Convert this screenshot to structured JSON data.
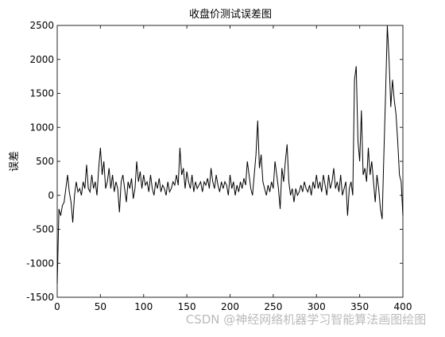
{
  "chart_data": {
    "type": "line",
    "title": "收盘价测试误差图",
    "y_label": "误差",
    "x": [
      0,
      2,
      4,
      6,
      8,
      10,
      12,
      14,
      16,
      18,
      20,
      22,
      24,
      26,
      28,
      30,
      32,
      34,
      36,
      38,
      40,
      42,
      44,
      46,
      48,
      50,
      52,
      54,
      56,
      58,
      60,
      62,
      64,
      66,
      68,
      70,
      72,
      74,
      76,
      78,
      80,
      82,
      84,
      86,
      88,
      90,
      92,
      94,
      96,
      98,
      100,
      102,
      104,
      106,
      108,
      110,
      112,
      114,
      116,
      118,
      120,
      122,
      124,
      126,
      128,
      130,
      132,
      134,
      136,
      138,
      140,
      142,
      144,
      146,
      148,
      150,
      152,
      154,
      156,
      158,
      160,
      162,
      164,
      166,
      168,
      170,
      172,
      174,
      176,
      178,
      180,
      182,
      184,
      186,
      188,
      190,
      192,
      194,
      196,
      198,
      200,
      202,
      204,
      206,
      208,
      210,
      212,
      214,
      216,
      218,
      220,
      222,
      224,
      226,
      228,
      230,
      232,
      234,
      236,
      238,
      240,
      242,
      244,
      246,
      248,
      250,
      252,
      254,
      256,
      258,
      260,
      262,
      264,
      266,
      268,
      270,
      272,
      274,
      276,
      278,
      280,
      282,
      284,
      286,
      288,
      290,
      292,
      294,
      296,
      298,
      300,
      302,
      304,
      306,
      308,
      310,
      312,
      314,
      316,
      318,
      320,
      322,
      324,
      326,
      328,
      330,
      332,
      334,
      336,
      338,
      340,
      342,
      344,
      346,
      348,
      350,
      352,
      354,
      356,
      358,
      360,
      362,
      364,
      366,
      368,
      370,
      372,
      374,
      376,
      378,
      380,
      382,
      384,
      386,
      388,
      390,
      392,
      394,
      396,
      398,
      400
    ],
    "series": [
      {
        "color": "#000000",
        "values": [
          -1300,
          -200,
          -300,
          -150,
          -100,
          100,
          300,
          50,
          -100,
          -400,
          0,
          200,
          50,
          100,
          0,
          200,
          100,
          450,
          100,
          50,
          300,
          100,
          200,
          0,
          400,
          700,
          300,
          500,
          100,
          200,
          400,
          100,
          300,
          50,
          200,
          100,
          -250,
          200,
          300,
          100,
          -100,
          200,
          100,
          250,
          -50,
          100,
          500,
          200,
          350,
          100,
          300,
          150,
          200,
          50,
          300,
          100,
          0,
          200,
          100,
          250,
          50,
          150,
          100,
          0,
          200,
          50,
          100,
          200,
          150,
          300,
          150,
          700,
          300,
          400,
          100,
          350,
          200,
          100,
          300,
          50,
          200,
          100,
          150,
          200,
          50,
          200,
          150,
          250,
          100,
          400,
          200,
          100,
          300,
          150,
          50,
          200,
          100,
          200,
          150,
          0,
          300,
          100,
          200,
          0,
          150,
          50,
          200,
          100,
          250,
          150,
          500,
          300,
          100,
          0,
          300,
          600,
          1100,
          400,
          600,
          200,
          100,
          0,
          150,
          50,
          200,
          100,
          500,
          300,
          100,
          -200,
          400,
          200,
          500,
          750,
          200,
          0,
          100,
          -100,
          100,
          0,
          50,
          150,
          50,
          200,
          100,
          50,
          150,
          0,
          200,
          100,
          300,
          100,
          200,
          50,
          300,
          150,
          0,
          300,
          100,
          200,
          400,
          100,
          200,
          50,
          300,
          0,
          100,
          200,
          -300,
          100,
          200,
          0,
          1700,
          1900,
          800,
          500,
          1250,
          300,
          400,
          200,
          700,
          300,
          500,
          200,
          -100,
          300,
          100,
          -200,
          -350,
          600,
          1500,
          2500,
          2000,
          1300,
          1700,
          1400,
          1200,
          800,
          300,
          200,
          -300
        ]
      }
    ],
    "xlim": [
      0,
      400
    ],
    "xticks": [
      0,
      50,
      100,
      150,
      200,
      250,
      300,
      350,
      400
    ],
    "ylim": [
      -1500,
      2500
    ],
    "yticks": [
      -1500,
      -1000,
      -500,
      0,
      500,
      1000,
      1500,
      2000,
      2500
    ],
    "watermark": "CSDN @神经网络机器学习智能算法画图绘图"
  }
}
